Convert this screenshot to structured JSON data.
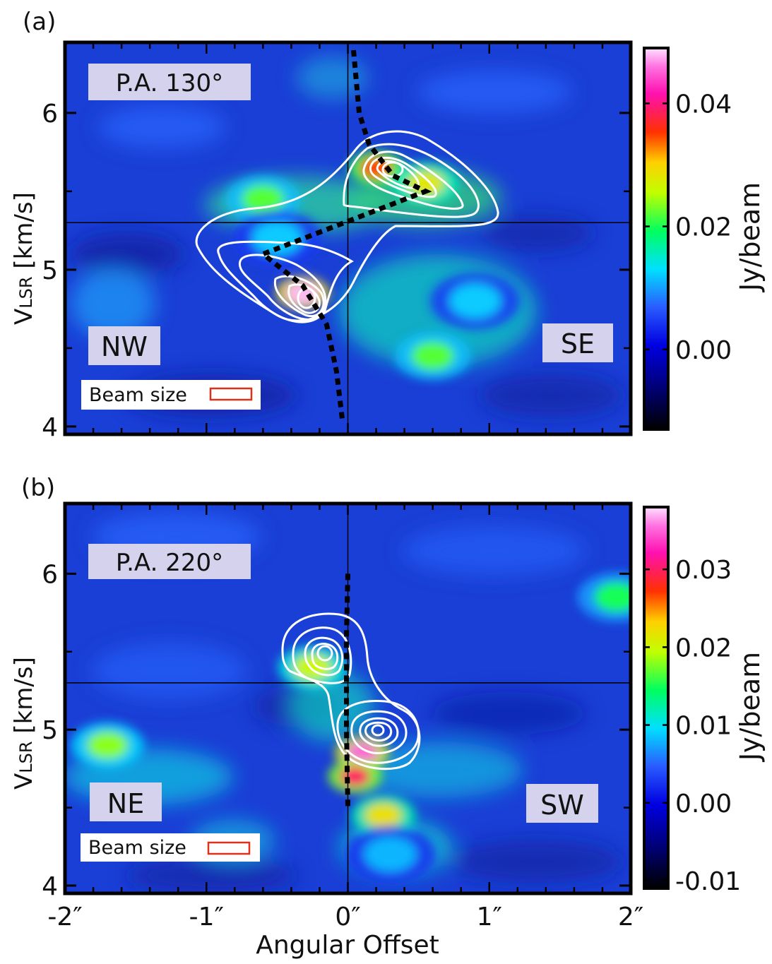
{
  "figure": {
    "xlabel": "Angular Offset",
    "ylabel_main": "V",
    "ylabel_sub": "LSR",
    "ylabel_unit": " [km/s]",
    "colorbar_label": "Jy/beam",
    "beam_label": "Beam size"
  },
  "chart_data": [
    {
      "type": "heatmap",
      "panel_label": "(a)",
      "pa_label": "P.A. 130°",
      "left_label": "NW",
      "right_label": "SE",
      "xlim": [
        -2,
        2
      ],
      "ylim": [
        3.95,
        6.45
      ],
      "x_ticks": [
        "-2″",
        "-1″",
        "0″",
        "1″",
        "2″"
      ],
      "y_ticks": [
        "4",
        "5",
        "6"
      ],
      "y_tick_values": [
        4,
        5,
        6
      ],
      "systemic_velocity": 5.3,
      "colorbar": {
        "min": -0.013,
        "max": 0.049,
        "ticks": [
          0.0,
          0.02,
          0.04
        ],
        "tick_labels": [
          "0.00",
          "0.02",
          "0.04"
        ]
      },
      "intensity_peaks": [
        {
          "x": -0.32,
          "v": 4.85,
          "value": 0.048
        },
        {
          "x": 0.2,
          "v": 5.65,
          "value": 0.035
        },
        {
          "x": 0.55,
          "v": 5.55,
          "value": 0.028
        },
        {
          "x": -0.6,
          "v": 5.45,
          "value": 0.022
        },
        {
          "x": 0.6,
          "v": 4.45,
          "value": 0.022
        },
        {
          "x": 0.9,
          "v": 4.8,
          "value": 0.012
        },
        {
          "x": -0.5,
          "v": 5.2,
          "value": 0.012
        }
      ],
      "model_curve": [
        {
          "x": 0.04,
          "v": 6.4
        },
        {
          "x": 0.08,
          "v": 6.0
        },
        {
          "x": 0.15,
          "v": 5.8
        },
        {
          "x": 0.32,
          "v": 5.6
        },
        {
          "x": 0.55,
          "v": 5.5
        },
        {
          "x": -0.6,
          "v": 5.1
        },
        {
          "x": -0.32,
          "v": 4.9
        },
        {
          "x": -0.15,
          "v": 4.65
        },
        {
          "x": -0.08,
          "v": 4.35
        },
        {
          "x": -0.04,
          "v": 4.05
        }
      ]
    },
    {
      "type": "heatmap",
      "panel_label": "(b)",
      "pa_label": "P.A. 220°",
      "left_label": "NE",
      "right_label": "SW",
      "xlim": [
        -2,
        2
      ],
      "ylim": [
        3.95,
        6.45
      ],
      "x_ticks": [
        "-2″",
        "-1″",
        "0″",
        "1″",
        "2″"
      ],
      "y_ticks": [
        "4",
        "5",
        "6"
      ],
      "y_tick_values": [
        4,
        5,
        6
      ],
      "systemic_velocity": 5.3,
      "colorbar": {
        "min": -0.011,
        "max": 0.038,
        "ticks": [
          -0.01,
          0.0,
          0.01,
          0.02,
          0.03
        ],
        "tick_labels": [
          "-0.01",
          "0.00",
          "0.01",
          "0.02",
          "0.03"
        ]
      },
      "intensity_peaks": [
        {
          "x": 0.1,
          "v": 4.85,
          "value": 0.035
        },
        {
          "x": 0.05,
          "v": 4.7,
          "value": 0.03
        },
        {
          "x": 0.25,
          "v": 4.45,
          "value": 0.022
        },
        {
          "x": -0.25,
          "v": 5.4,
          "value": 0.02
        },
        {
          "x": -1.7,
          "v": 4.9,
          "value": 0.018
        },
        {
          "x": 1.9,
          "v": 5.85,
          "value": 0.015
        },
        {
          "x": 0.3,
          "v": 4.2,
          "value": 0.008
        }
      ],
      "model_curve": [
        {
          "x": 0.0,
          "v": 6.0
        },
        {
          "x": -0.01,
          "v": 5.6
        },
        {
          "x": -0.01,
          "v": 5.3
        },
        {
          "x": -0.01,
          "v": 5.0
        },
        {
          "x": 0.0,
          "v": 4.5
        }
      ]
    }
  ]
}
